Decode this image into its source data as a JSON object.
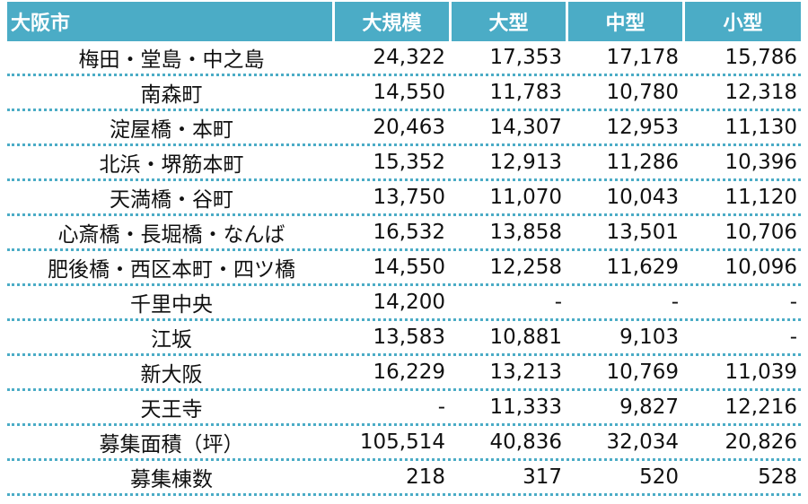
{
  "table": {
    "columns": [
      "大阪市",
      "大規模",
      "大型",
      "中型",
      "小型"
    ],
    "rows": [
      {
        "label": "梅田・堂島・中之島",
        "values": [
          "24,322",
          "17,353",
          "17,178",
          "15,786"
        ]
      },
      {
        "label": "南森町",
        "values": [
          "14,550",
          "11,783",
          "10,780",
          "12,318"
        ]
      },
      {
        "label": "淀屋橋・本町",
        "values": [
          "20,463",
          "14,307",
          "12,953",
          "11,130"
        ]
      },
      {
        "label": "北浜・堺筋本町",
        "values": [
          "15,352",
          "12,913",
          "11,286",
          "10,396"
        ]
      },
      {
        "label": "天満橋・谷町",
        "values": [
          "13,750",
          "11,070",
          "10,043",
          "11,120"
        ]
      },
      {
        "label": "心斎橋・長堀橋・なんば",
        "values": [
          "16,532",
          "13,858",
          "13,501",
          "10,706"
        ]
      },
      {
        "label": "肥後橋・西区本町・四ツ橋",
        "values": [
          "14,550",
          "12,258",
          "11,629",
          "10,096"
        ]
      },
      {
        "label": "千里中央",
        "values": [
          "14,200",
          "-",
          "-",
          "-"
        ]
      },
      {
        "label": "江坂",
        "values": [
          "13,583",
          "10,881",
          "9,103",
          "-"
        ]
      },
      {
        "label": "新大阪",
        "values": [
          "16,229",
          "13,213",
          "10,769",
          "11,039"
        ]
      },
      {
        "label": "天王寺",
        "values": [
          "-",
          "11,333",
          "9,827",
          "12,216"
        ]
      },
      {
        "label": "募集面積（坪）",
        "values": [
          "105,514",
          "40,836",
          "32,034",
          "20,826"
        ]
      },
      {
        "label": "募集棟数",
        "values": [
          "218",
          "317",
          "520",
          "528"
        ]
      }
    ]
  },
  "colors": {
    "header_bg": "#4bacc6",
    "header_text": "#ffffff",
    "row_divider": "#4bacc6"
  }
}
